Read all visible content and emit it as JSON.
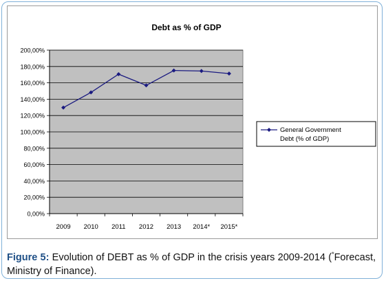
{
  "chart_data": {
    "type": "line",
    "title": "Debt as % of GDP",
    "categories": [
      "2009",
      "2010",
      "2011",
      "2012",
      "2013",
      "2014*",
      "2015*"
    ],
    "series": [
      {
        "name": "General Government Debt (% of GDP)",
        "values": [
          129.7,
          148.3,
          170.6,
          156.9,
          175.1,
          174.5,
          171.3
        ]
      }
    ],
    "ylim": [
      0,
      200
    ],
    "yticks": [
      "0,00%",
      "20,00%",
      "40,00%",
      "60,00%",
      "80,00%",
      "100,00%",
      "120,00%",
      "140,00%",
      "160,00%",
      "180,00%",
      "200,00%"
    ],
    "grid": true,
    "legend": "right",
    "colors": {
      "line": "#1a1a80",
      "plot_bg": "#c0c0c0",
      "grid": "#000000"
    }
  },
  "caption": {
    "label": "Figure 5:",
    "text_part1": " Evolution of DEBT as % of GDP in the crisis years 2009-2014 (",
    "asterisk": "*",
    "text_part2": "Forecast, Ministry of Finance)."
  }
}
